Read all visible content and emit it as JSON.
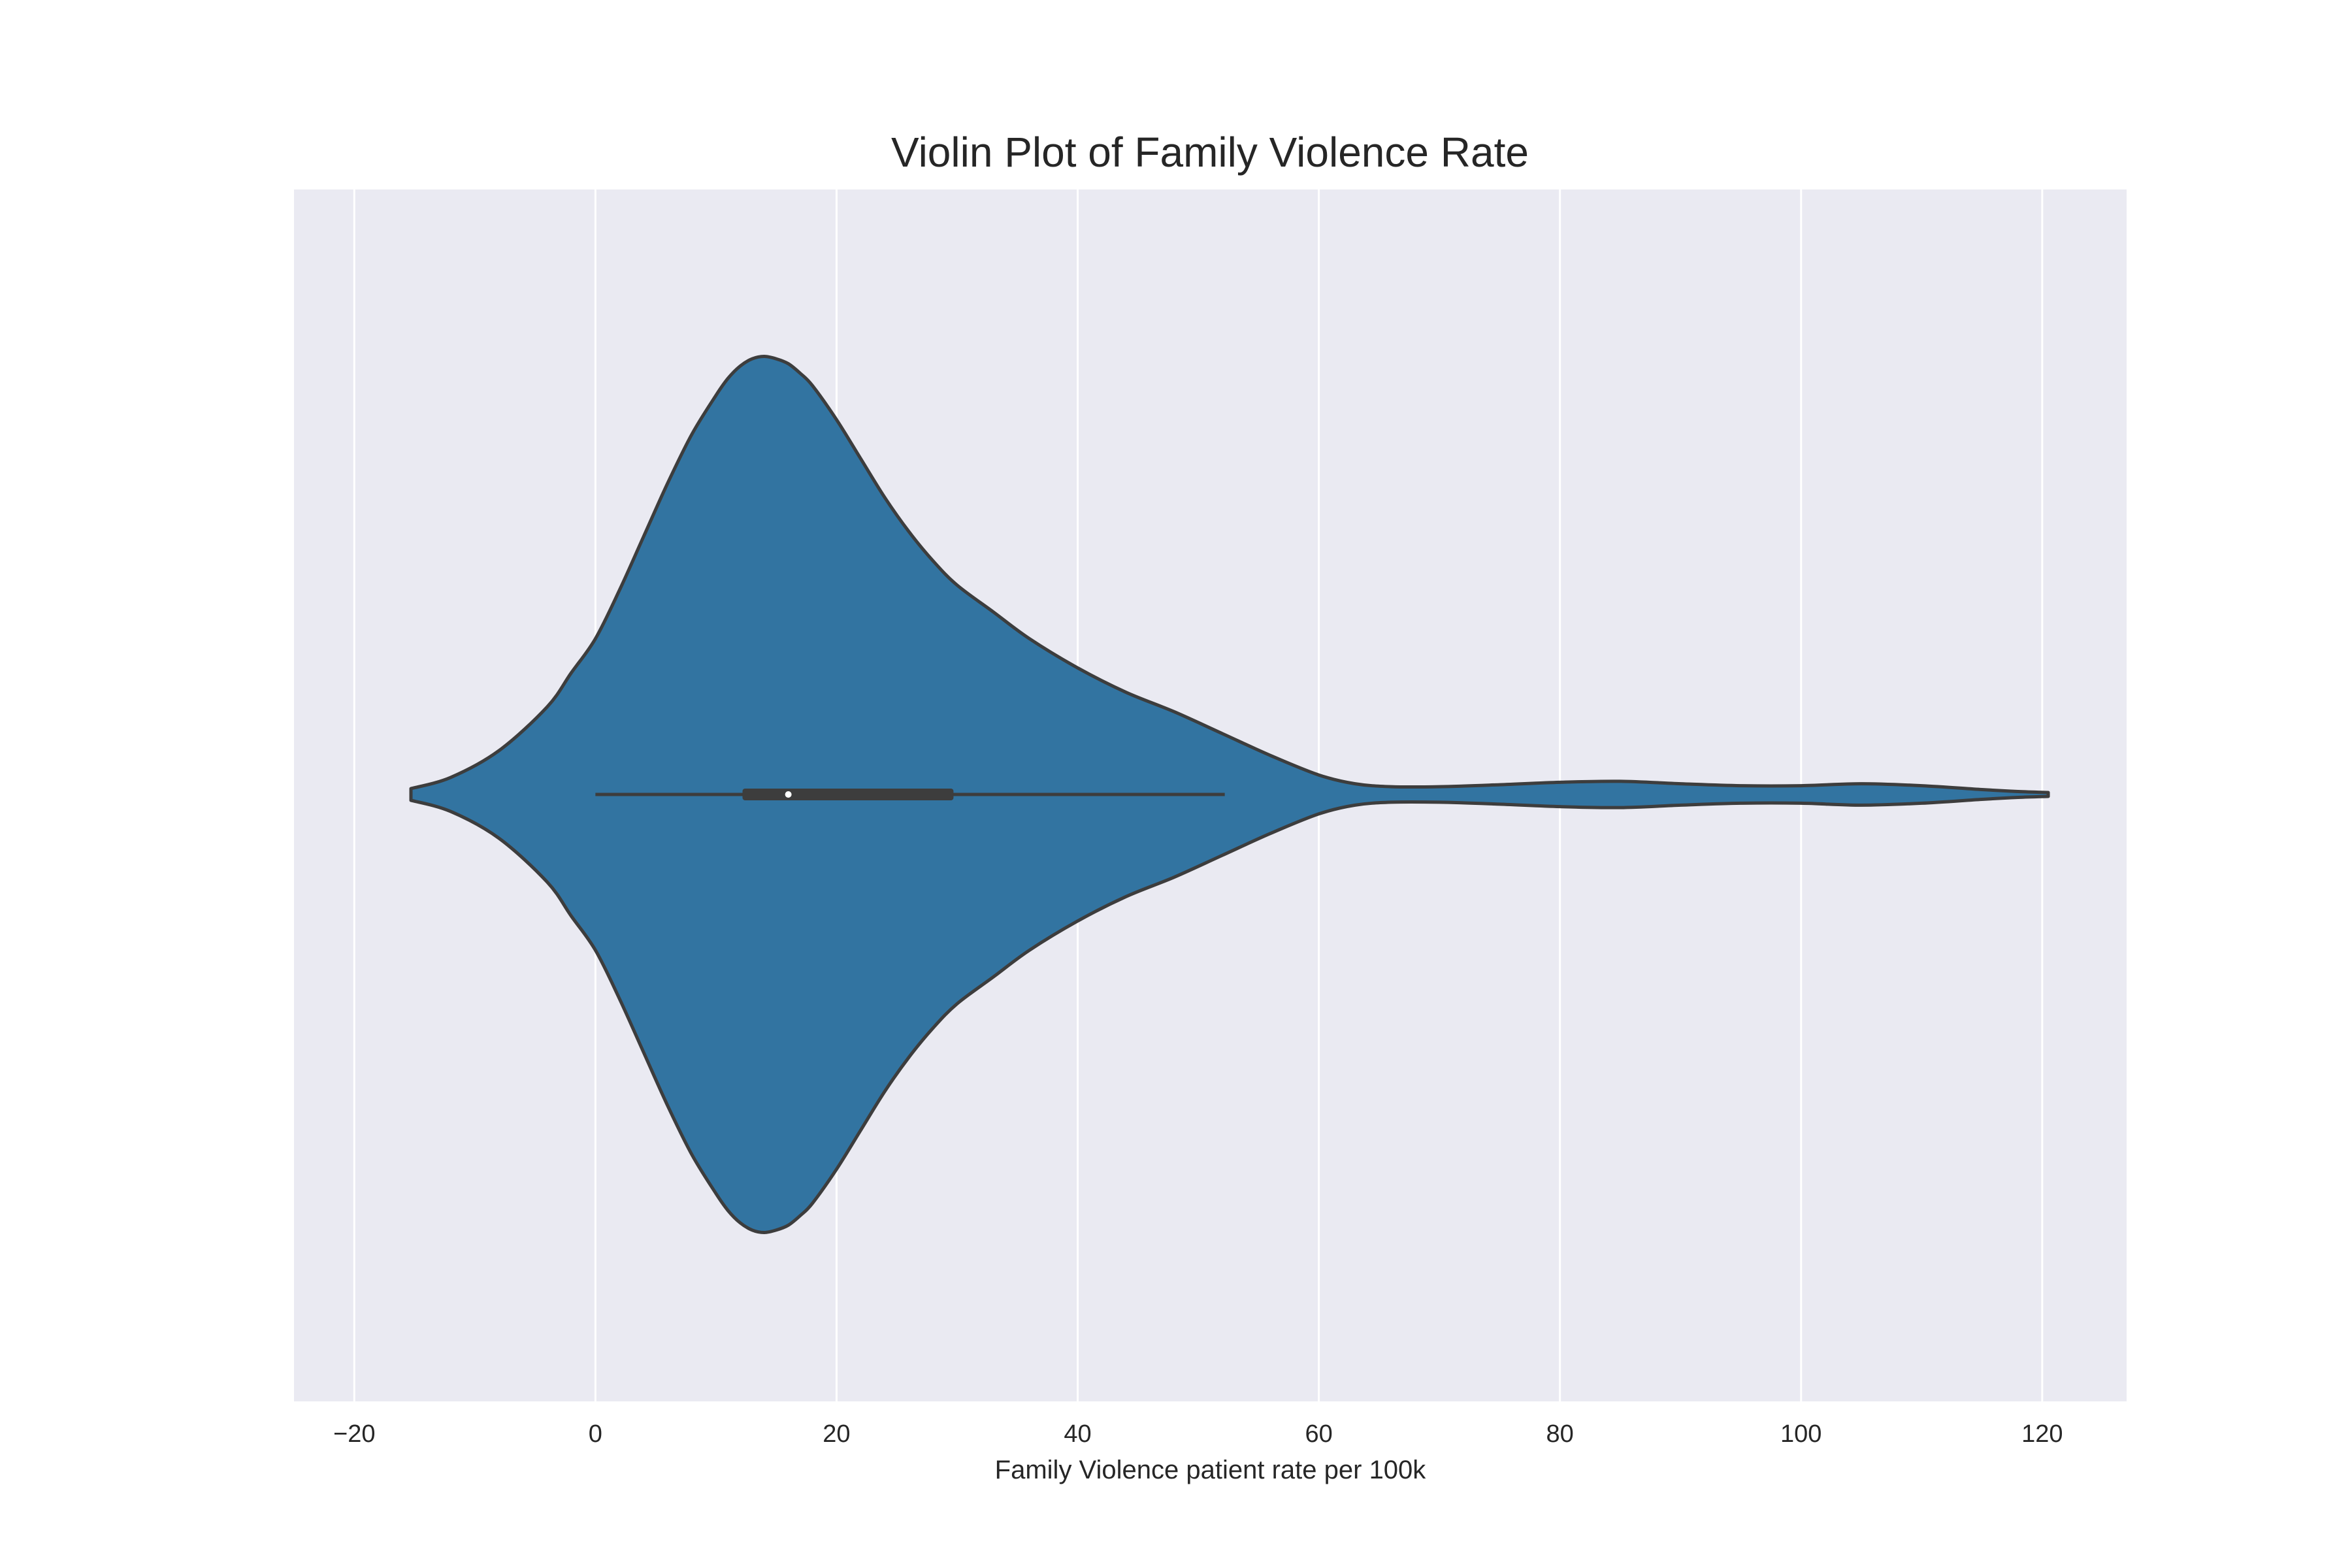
{
  "chart_data": {
    "type": "violin",
    "title": "Violin Plot of Family Violence Rate",
    "xlabel": "Family Violence patient rate per 100k",
    "ylabel": "",
    "xlim": [
      -25,
      127
    ],
    "xticks": [
      -20,
      0,
      20,
      40,
      60,
      80,
      100,
      120
    ],
    "xtick_labels": [
      "−20",
      "0",
      "20",
      "40",
      "60",
      "80",
      "100",
      "120"
    ],
    "grid": true,
    "orientation": "horizontal",
    "fill_color": "#3274a1",
    "edge_color": "#3d3d3d",
    "background_color": "#eaeaf2",
    "density": {
      "x": [
        -15.3,
        -12,
        -8,
        -4,
        -2,
        0,
        2,
        4,
        6,
        8,
        10,
        11,
        12,
        13,
        14,
        15,
        16,
        17,
        18,
        20,
        22,
        24,
        26,
        28,
        30,
        33,
        36,
        40,
        44,
        48,
        52,
        56,
        60,
        63,
        66,
        70,
        75,
        80,
        85,
        90,
        95,
        100,
        105,
        110,
        115,
        118,
        120.5
      ],
      "width": [
        0.012,
        0.035,
        0.09,
        0.18,
        0.25,
        0.32,
        0.42,
        0.53,
        0.64,
        0.74,
        0.82,
        0.855,
        0.88,
        0.895,
        0.9,
        0.895,
        0.885,
        0.865,
        0.84,
        0.77,
        0.69,
        0.61,
        0.54,
        0.48,
        0.43,
        0.375,
        0.32,
        0.26,
        0.21,
        0.17,
        0.125,
        0.08,
        0.04,
        0.022,
        0.016,
        0.016,
        0.02,
        0.025,
        0.027,
        0.022,
        0.018,
        0.018,
        0.022,
        0.018,
        0.01,
        0.006,
        0.004
      ]
    },
    "box": {
      "whisker_low": 0,
      "q1": 12.2,
      "median": 16,
      "q3": 29.7,
      "whisker_high": 52.2
    }
  }
}
